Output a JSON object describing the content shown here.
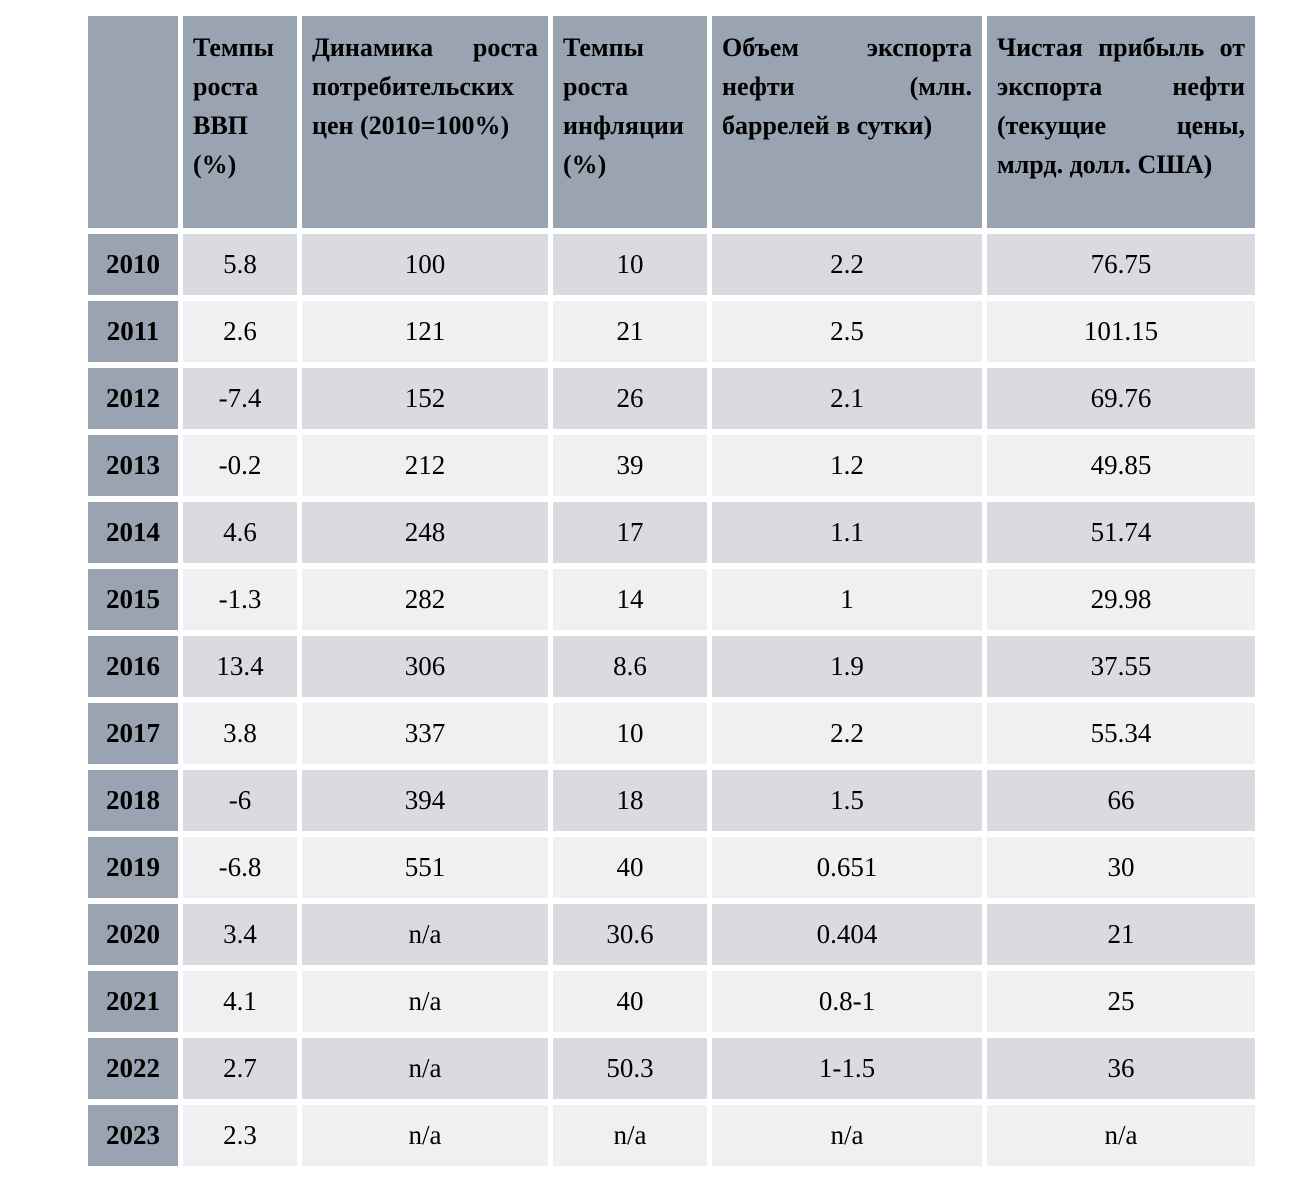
{
  "chart_data": {
    "type": "table",
    "columns": [
      "",
      "Темпы роста ВВП (%)",
      "Динамика роста потребительских цен (2010=100%)",
      "Темпы роста инфляции (%)",
      "Объем экспорта нефти (млн. баррелей в сутки)",
      "Чистая прибыль от экспорта нефти (текущие цены, млрд. долл. США)"
    ],
    "column_keys": [
      "year",
      "gdp_growth_pct",
      "cpi_index_2010_100",
      "inflation_pct",
      "oil_export_mln_bbl_per_day",
      "oil_export_net_profit_bln_usd"
    ],
    "rows": [
      [
        "2010",
        "5.8",
        "100",
        "10",
        "2.2",
        "76.75"
      ],
      [
        "2011",
        "2.6",
        "121",
        "21",
        "2.5",
        "101.15"
      ],
      [
        "2012",
        "-7.4",
        "152",
        "26",
        "2.1",
        "69.76"
      ],
      [
        "2013",
        "-0.2",
        "212",
        "39",
        "1.2",
        "49.85"
      ],
      [
        "2014",
        "4.6",
        "248",
        "17",
        "1.1",
        "51.74"
      ],
      [
        "2015",
        "-1.3",
        "282",
        "14",
        "1",
        "29.98"
      ],
      [
        "2016",
        "13.4",
        "306",
        "8.6",
        "1.9",
        "37.55"
      ],
      [
        "2017",
        "3.8",
        "337",
        "10",
        "2.2",
        "55.34"
      ],
      [
        "2018",
        "-6",
        "394",
        "18",
        "1.5",
        "66"
      ],
      [
        "2019",
        "-6.8",
        "551",
        "40",
        "0.651",
        "30"
      ],
      [
        "2020",
        "3.4",
        "n/a",
        "30.6",
        "0.404",
        "21"
      ],
      [
        "2021",
        "4.1",
        "n/a",
        "40",
        "0.8-1",
        "25"
      ],
      [
        "2022",
        "2.7",
        "n/a",
        "50.3",
        "1-1.5",
        "36"
      ],
      [
        "2023",
        "2.3",
        "n/a",
        "n/a",
        "n/a",
        "n/a"
      ]
    ],
    "na_label": "n/a",
    "layout": {
      "header_position": "top",
      "row_label_position": "left",
      "grid": "white-gaps",
      "zebra_striping": true
    }
  },
  "colors": {
    "header_bg": "#9aa3b2",
    "row_dark_bg": "#d9dbe1",
    "row_light_bg": "#eef0f2",
    "gap": "#ffffff",
    "text": "#000000"
  }
}
